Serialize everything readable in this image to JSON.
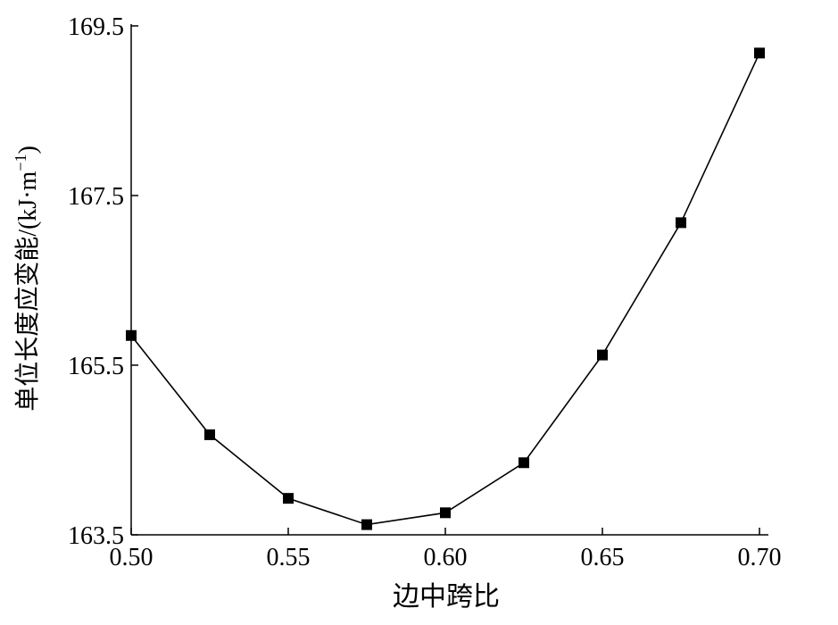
{
  "chart_data": {
    "type": "line",
    "title": "",
    "xlabel": "边中跨比",
    "ylabel": {
      "main": "单位长度应变能/(kJ·m",
      "sup": "−1",
      "tail": ")"
    },
    "x": [
      0.5,
      0.525,
      0.55,
      0.575,
      0.6,
      0.625,
      0.65,
      0.675,
      0.7
    ],
    "series": [
      {
        "name": "",
        "values": [
          165.85,
          164.68,
          163.93,
          163.62,
          163.76,
          164.35,
          165.62,
          167.18,
          169.18
        ]
      }
    ],
    "xlim": [
      0.5,
      0.7
    ],
    "ylim": [
      163.5,
      169.5
    ],
    "xticks": [
      "0.50",
      "0.55",
      "0.60",
      "0.65",
      "0.70"
    ],
    "xtick_values": [
      0.5,
      0.55,
      0.6,
      0.65,
      0.7
    ],
    "yticks": [
      "163.5",
      "165.5",
      "167.5",
      "169.5"
    ],
    "ytick_values": [
      163.5,
      165.5,
      167.5,
      169.5
    ],
    "grid": false,
    "marker": "square",
    "line_color": "#000000",
    "marker_color": "#000000"
  }
}
